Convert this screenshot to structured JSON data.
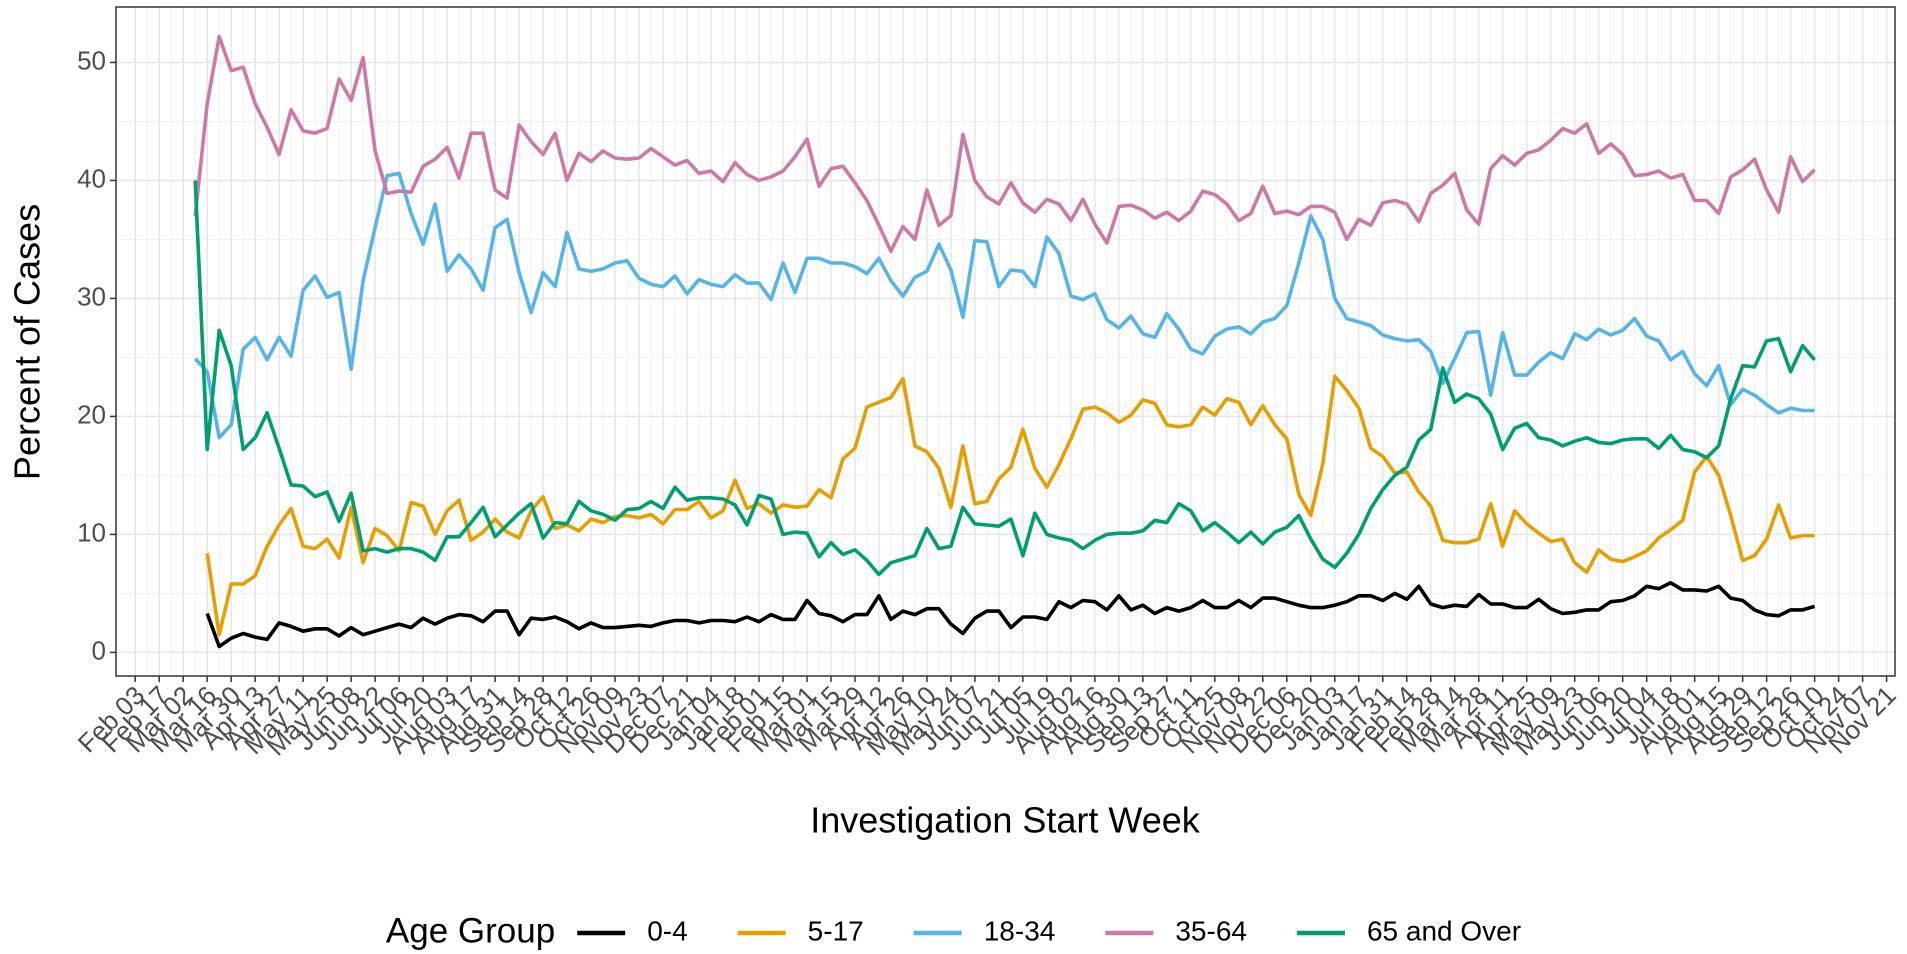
{
  "chart_data": {
    "type": "line",
    "x_label": "Investigation Start Week",
    "y_label": "Percent of Cases",
    "legend_title": "Age Group",
    "legend": "bottom",
    "grid": true,
    "ylim": [
      -2,
      54.7
    ],
    "yticks": [
      0,
      10,
      20,
      30,
      40,
      50
    ],
    "categories": [
      "Feb 03",
      null,
      "Feb 17",
      null,
      "Mar 02",
      null,
      "Mar 16",
      null,
      "Mar 30",
      null,
      "Apr 13",
      null,
      "Apr 27",
      null,
      "May 11",
      null,
      "May 25",
      null,
      "Jun 08",
      null,
      "Jun 22",
      null,
      "Jul 06",
      null,
      "Jul 20",
      null,
      "Aug 03",
      null,
      "Aug 17",
      null,
      "Aug 31",
      null,
      "Sep 14",
      null,
      "Sep 28",
      null,
      "Oct 12",
      null,
      "Oct 26",
      null,
      "Nov 09",
      null,
      "Nov 23",
      null,
      "Dec 07",
      null,
      "Dec 21",
      null,
      "Jan 04",
      null,
      "Jan 18",
      null,
      "Feb 01",
      null,
      "Feb 15",
      null,
      "Mar 01",
      null,
      "Mar 15",
      null,
      "Mar 29",
      null,
      "Apr 12",
      null,
      "Apr 26",
      null,
      "May 10",
      null,
      "May 24",
      null,
      "Jun 07",
      null,
      "Jun 21",
      null,
      "Jul 05",
      null,
      "Jul 19",
      null,
      "Aug 02",
      null,
      "Aug 16",
      null,
      "Aug 30",
      null,
      "Sep 13",
      null,
      "Sep 27",
      null,
      "Oct 11",
      null,
      "Oct 25",
      null,
      "Nov 08",
      null,
      "Nov 22",
      null,
      "Dec 06",
      null,
      "Dec 20",
      null,
      "Jan 03",
      null,
      "Jan 17",
      null,
      "Jan 31",
      null,
      "Feb 14",
      null,
      "Feb 28",
      null,
      "Mar 14",
      null,
      "Mar 28",
      null,
      "Apr 11",
      null,
      "Apr 25",
      null,
      "May 09",
      null,
      "May 23",
      null,
      "Jun 06",
      null,
      "Jun 20",
      null,
      "Jul 04",
      null,
      "Jul 18",
      null,
      "Aug 01",
      null,
      "Aug 15",
      null,
      "Aug 29",
      null,
      "Sep 12",
      null,
      "Sep 26",
      null,
      "Oct 10",
      null,
      "Oct 24",
      null,
      "Nov 07",
      null,
      "Nov 21"
    ],
    "series": [
      {
        "name": "0-4",
        "color": "#000000",
        "values": [
          null,
          null,
          null,
          null,
          null,
          null,
          3.3,
          0.5,
          1.2,
          1.6,
          1.3,
          1.1,
          2.5,
          2.2,
          1.8,
          2,
          2,
          1.4,
          2.1,
          1.5,
          1.8,
          2.1,
          2.4,
          2.1,
          2.9,
          2.4,
          2.9,
          3.2,
          3.1,
          2.6,
          3.5,
          3.5,
          1.5,
          2.9,
          2.8,
          3,
          2.6,
          2,
          2.5,
          2.1,
          2.1,
          2.2,
          2.3,
          2.2,
          2.5,
          2.7,
          2.7,
          2.5,
          2.7,
          2.7,
          2.6,
          3,
          2.6,
          3.2,
          2.8,
          2.8,
          4.4,
          3.3,
          3.1,
          2.6,
          3.2,
          3.2,
          4.8,
          2.8,
          3.5,
          3.2,
          3.7,
          3.7,
          2.4,
          1.6,
          2.9,
          3.5,
          3.5,
          2.1,
          3,
          3,
          2.8,
          4.3,
          3.8,
          4.4,
          4.3,
          3.6,
          4.8,
          3.6,
          4,
          3.3,
          3.8,
          3.5,
          3.8,
          4.4,
          3.8,
          3.8,
          4.4,
          3.8,
          4.6,
          4.6,
          4.3,
          4,
          3.8,
          3.8,
          4,
          4.3,
          4.8,
          4.8,
          4.4,
          5,
          4.5,
          5.6,
          4.1,
          3.8,
          4,
          3.9,
          4.9,
          4.1,
          4.1,
          3.8,
          3.8,
          4.5,
          3.7,
          3.3,
          3.4,
          3.6,
          3.6,
          4.3,
          4.4,
          4.8,
          5.6,
          5.4,
          5.9,
          5.3,
          5.3,
          5.2,
          5.6,
          4.6,
          4.4,
          3.6,
          3.2,
          3.1,
          3.6,
          3.6,
          3.9,
          null,
          null,
          null,
          null,
          null,
          null
        ]
      },
      {
        "name": "5-17",
        "color": "#E69F00",
        "values": [
          null,
          null,
          null,
          null,
          null,
          null,
          8.4,
          1.5,
          5.8,
          5.8,
          6.5,
          9,
          10.8,
          12.2,
          9,
          8.8,
          9.6,
          8,
          12.3,
          7.6,
          10.5,
          9.9,
          8.6,
          12.7,
          12.4,
          10,
          12,
          12.9,
          9.5,
          10.2,
          11.3,
          10.2,
          9.7,
          12,
          13.2,
          10.5,
          10.8,
          10.3,
          11.3,
          11,
          11.5,
          11.6,
          11.4,
          11.7,
          10.9,
          12.1,
          12.1,
          12.8,
          11.4,
          12,
          14.6,
          12.2,
          12.6,
          11.8,
          12.5,
          12.3,
          12.4,
          13.8,
          13.1,
          16.4,
          17.3,
          20.8,
          21.2,
          21.6,
          23.2,
          17.5,
          17,
          15.6,
          12.3,
          17.5,
          12.6,
          12.8,
          14.7,
          15.7,
          18.9,
          15.6,
          14,
          15.9,
          18.1,
          20.6,
          20.8,
          20.3,
          19.5,
          20.1,
          21.4,
          21.1,
          19.3,
          19.1,
          19.3,
          20.8,
          20.1,
          21.5,
          21.2,
          19.3,
          20.9,
          19.3,
          18.1,
          13.4,
          11.6,
          16,
          23.4,
          22.2,
          20.7,
          17.3,
          16.6,
          15.2,
          15.3,
          13.6,
          12.4,
          9.5,
          9.3,
          9.3,
          9.6,
          12.6,
          9,
          12,
          10.9,
          10.1,
          9.4,
          9.6,
          7.6,
          6.8,
          8.7,
          7.9,
          7.7,
          8.1,
          8.6,
          9.7,
          10.4,
          11.2,
          15.3,
          16.6,
          15,
          11.6,
          7.8,
          8.2,
          9.6,
          12.5,
          9.7,
          9.9,
          9.9,
          null,
          null,
          null,
          null,
          null,
          null
        ]
      },
      {
        "name": "18-34",
        "color": "#56B4E9",
        "values": [
          null,
          null,
          null,
          null,
          null,
          24.9,
          23.8,
          18.2,
          19.3,
          25.7,
          26.7,
          24.8,
          26.7,
          25.1,
          30.7,
          31.9,
          30.1,
          30.5,
          24,
          31.5,
          36,
          40.4,
          40.6,
          37.2,
          34.6,
          38,
          32.3,
          33.7,
          32.5,
          30.7,
          36,
          36.7,
          32.2,
          28.8,
          32.2,
          31,
          35.6,
          32.5,
          32.3,
          32.5,
          33,
          33.2,
          31.7,
          31.2,
          31,
          31.9,
          30.4,
          31.6,
          31.2,
          31,
          32,
          31.3,
          31.3,
          29.9,
          33,
          30.5,
          33.4,
          33.4,
          33,
          33,
          32.7,
          32.1,
          33.4,
          31.5,
          30.2,
          31.8,
          32.3,
          34.6,
          32.4,
          28.4,
          34.9,
          34.8,
          31,
          32.4,
          32.3,
          31,
          35.2,
          33.8,
          30.2,
          29.9,
          30.4,
          28.2,
          27.5,
          28.5,
          27,
          26.7,
          28.7,
          27.4,
          25.7,
          25.3,
          26.8,
          27.4,
          27.6,
          27,
          28,
          28.3,
          29.4,
          33,
          37,
          35,
          30,
          28.3,
          28,
          27.7,
          26.9,
          26.6,
          26.4,
          26.5,
          25.5,
          22.8,
          24.9,
          27.1,
          27.2,
          21.8,
          27.1,
          23.5,
          23.5,
          24.6,
          25.4,
          24.9,
          27,
          26.5,
          27.4,
          26.9,
          27.3,
          28.3,
          26.8,
          26.4,
          24.8,
          25.5,
          23.6,
          22.6,
          24.3,
          21,
          22.3,
          21.8,
          21,
          20.3,
          20.7,
          20.5,
          20.5,
          null,
          null,
          null,
          null,
          null,
          null
        ]
      },
      {
        "name": "35-64",
        "color": "#CC79A7",
        "values": [
          null,
          null,
          null,
          null,
          null,
          37,
          46.5,
          52.2,
          49.3,
          49.6,
          46.5,
          44.5,
          42.2,
          46,
          44.2,
          44,
          44.4,
          48.6,
          46.8,
          50.4,
          42.5,
          38.9,
          39.1,
          39,
          41.2,
          41.8,
          42.8,
          40.2,
          44,
          44,
          39.2,
          38.5,
          44.7,
          43.3,
          42.2,
          44,
          40,
          42.3,
          41.6,
          42.5,
          41.9,
          41.8,
          41.9,
          42.7,
          42,
          41.3,
          41.7,
          40.6,
          40.8,
          39.9,
          41.5,
          40.5,
          40,
          40.3,
          40.8,
          42,
          43.5,
          39.5,
          41,
          41.2,
          39.8,
          38.3,
          36.2,
          34,
          36.1,
          35,
          39.2,
          36.2,
          37,
          43.9,
          40,
          38.6,
          38,
          39.8,
          38.1,
          37.3,
          38.4,
          38,
          36.6,
          38.4,
          36.3,
          34.7,
          37.8,
          37.9,
          37.5,
          36.8,
          37.3,
          36.6,
          37.4,
          39.1,
          38.8,
          38,
          36.6,
          37.2,
          39.5,
          37.2,
          37.4,
          37.1,
          37.8,
          37.8,
          37.3,
          35,
          36.7,
          36.2,
          38.1,
          38.3,
          38,
          36.5,
          38.9,
          39.6,
          40.6,
          37.5,
          36.3,
          41,
          42.1,
          41.3,
          42.3,
          42.6,
          43.4,
          44.4,
          44,
          44.8,
          42.3,
          43.1,
          42.2,
          40.4,
          40.5,
          40.8,
          40.2,
          40.5,
          38.3,
          38.3,
          37.2,
          40.3,
          40.9,
          41.8,
          39.2,
          37.3,
          42,
          39.9,
          40.9,
          null,
          null,
          null,
          null,
          null,
          null
        ]
      },
      {
        "name": "65 and Over",
        "color": "#009E73",
        "values": [
          null,
          null,
          null,
          null,
          null,
          40,
          17.2,
          27.3,
          24.3,
          17.2,
          18.2,
          20.3,
          17.3,
          14.2,
          14.1,
          13.2,
          13.6,
          11.1,
          13.5,
          8.6,
          8.8,
          8.5,
          8.8,
          8.8,
          8.5,
          7.8,
          9.8,
          9.8,
          11,
          12.3,
          9.8,
          10.8,
          11.8,
          12.6,
          9.7,
          11,
          10.9,
          12.8,
          12,
          11.7,
          11.2,
          12.1,
          12.2,
          12.8,
          12.2,
          14,
          12.9,
          13.1,
          13.1,
          13,
          12.5,
          10.8,
          13.3,
          13,
          10,
          10.2,
          10.1,
          8.1,
          9.3,
          8.3,
          8.7,
          7.8,
          6.6,
          7.6,
          7.9,
          8.2,
          10.5,
          8.8,
          9,
          12.3,
          10.9,
          10.8,
          10.7,
          11.3,
          8.2,
          11.8,
          10,
          9.7,
          9.5,
          8.8,
          9.5,
          10,
          10.1,
          10.1,
          10.3,
          11.2,
          11,
          12.6,
          12,
          10.3,
          11,
          10.2,
          9.3,
          10.2,
          9.2,
          10.2,
          10.6,
          11.6,
          9.6,
          7.9,
          7.2,
          8.4,
          10,
          12.2,
          13.8,
          15,
          15.7,
          18,
          18.9,
          24.1,
          21.2,
          21.9,
          21.5,
          20.2,
          17.2,
          19,
          19.4,
          18.2,
          18,
          17.5,
          17.9,
          18.2,
          17.8,
          17.7,
          18,
          18.1,
          18.1,
          17.3,
          18.4,
          17.2,
          17,
          16.5,
          17.5,
          21.5,
          24.3,
          24.2,
          26.4,
          26.6,
          23.8,
          26,
          24.8,
          null,
          null,
          null,
          null,
          null,
          null
        ]
      }
    ]
  }
}
